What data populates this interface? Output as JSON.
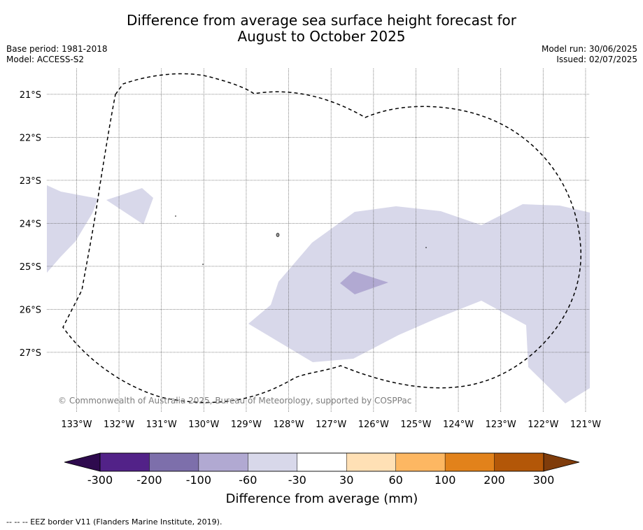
{
  "title": {
    "line1": "Difference from average sea surface height forecast for",
    "line2": "August to October 2025"
  },
  "meta": {
    "base_period": "Base period: 1981-2018",
    "model": "Model: ACCESS-S2",
    "model_run": "Model run: 30/06/2025",
    "issued": "Issued: 02/07/2025"
  },
  "map": {
    "lon_range": [
      -133.7,
      -120.9
    ],
    "lat_range": [
      -28.4,
      -20.4
    ],
    "lon_ticks": [
      -133,
      -132,
      -131,
      -130,
      -129,
      -128,
      -127,
      -126,
      -125,
      -124,
      -123,
      -122,
      -121
    ],
    "lon_tick_labels": [
      "133°W",
      "132°W",
      "131°W",
      "130°W",
      "129°W",
      "128°W",
      "127°W",
      "126°W",
      "125°W",
      "124°W",
      "123°W",
      "122°W",
      "121°W"
    ],
    "lat_ticks": [
      -21,
      -22,
      -23,
      -24,
      -25,
      -26,
      -27
    ],
    "lat_tick_labels": [
      "21°S",
      "22°S",
      "23°S",
      "24°S",
      "25°S",
      "26°S",
      "27°S"
    ],
    "grid": true,
    "copyright": "© Commonwealth of Australia 2025, Bureau of Meteorology, supported by COSPPac",
    "colors": {
      "band_neg30_neg60": "#d8d8ea",
      "band_neg60_neg100": "#b1a9d2",
      "eez_border": "#000000",
      "grid": "#666666"
    }
  },
  "colorbar": {
    "title": "Difference from average (mm)",
    "tick_labels": [
      "-300",
      "-200",
      "-100",
      "-60",
      "-30",
      "30",
      "60",
      "100",
      "200",
      "300"
    ],
    "colors": [
      "#522288",
      "#7d6fab",
      "#b1a9d2",
      "#d8d8ea",
      "#ffffff",
      "#ffe0b5",
      "#fdb762",
      "#e2821b",
      "#b35708"
    ],
    "under_color": "#2e0a4e",
    "over_color": "#7f3c0b"
  },
  "footnote": "--  --  -- EEZ border V11 (Flanders Marine Institute, 2019)."
}
